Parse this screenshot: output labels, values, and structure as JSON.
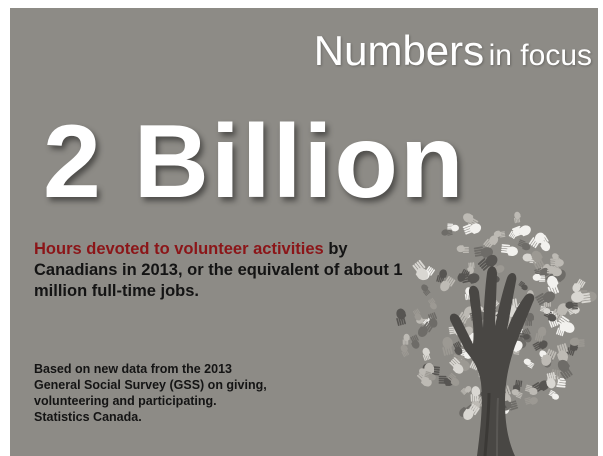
{
  "header": {
    "title_word": "Numbers",
    "title_rest": "in focus"
  },
  "headline": {
    "value": "2 Billion"
  },
  "description": {
    "highlight": "Hours devoted to volunteer activities",
    "rest": " by Canadians in 2013, or the equivalent of about 1 million full-time jobs."
  },
  "source": {
    "line1": "Based on new data from the 2013",
    "line2": "General Social Survey (GSS) on giving,",
    "line3": "volunteering and participating.",
    "line4": "Statistics Canada."
  },
  "illustration": {
    "icon": "hand-tree-icon"
  },
  "colors": {
    "background": "#8d8b86",
    "highlight": "#8b1518",
    "headline": "#ffffff",
    "text": "#141414"
  }
}
